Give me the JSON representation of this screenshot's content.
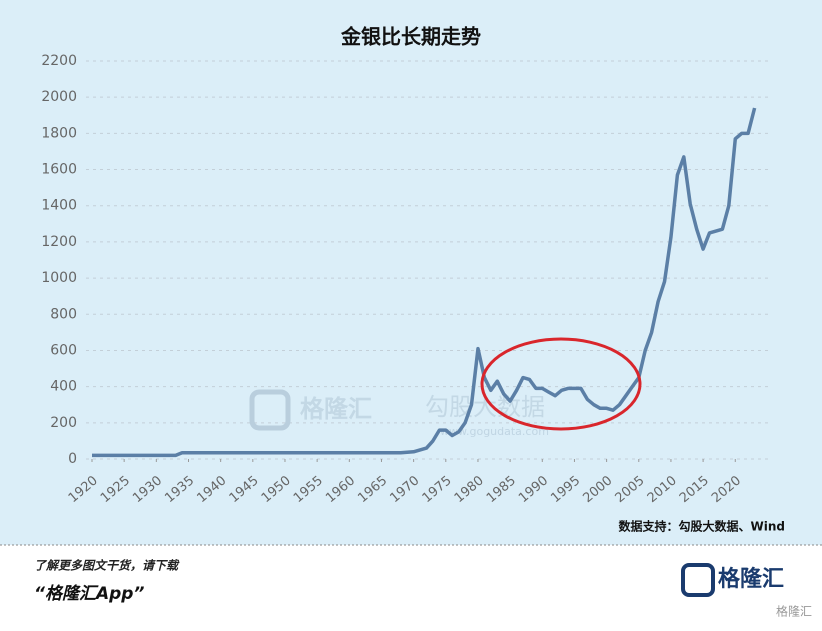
{
  "chart_data": {
    "type": "line",
    "title": "金银比长期走势",
    "x": [
      1920,
      1925,
      1930,
      1933,
      1934,
      1940,
      1950,
      1960,
      1968,
      1970,
      1972,
      1973,
      1974,
      1975,
      1976,
      1977,
      1978,
      1979,
      1980,
      1981,
      1982,
      1983,
      1984,
      1985,
      1986,
      1987,
      1988,
      1989,
      1990,
      1991,
      1992,
      1993,
      1994,
      1995,
      1996,
      1997,
      1998,
      1999,
      2000,
      2001,
      2002,
      2003,
      2004,
      2005,
      2006,
      2007,
      2008,
      2009,
      2010,
      2011,
      2012,
      2013,
      2014,
      2015,
      2016,
      2017,
      2018,
      2019,
      2020,
      2021,
      2022,
      2023
    ],
    "values": [
      20,
      20,
      20,
      20,
      35,
      35,
      35,
      35,
      35,
      40,
      60,
      100,
      160,
      160,
      130,
      150,
      200,
      300,
      610,
      450,
      380,
      430,
      360,
      320,
      380,
      450,
      440,
      390,
      390,
      370,
      350,
      380,
      390,
      390,
      390,
      330,
      300,
      280,
      280,
      270,
      300,
      350,
      400,
      450,
      600,
      700,
      870,
      980,
      1225,
      1570,
      1670,
      1410,
      1270,
      1160,
      1250,
      1260,
      1270,
      1400,
      1770,
      1800,
      1800,
      1940
    ],
    "color": "#5b7fa6",
    "xlim": [
      1920,
      2024
    ],
    "xticks": [
      1920,
      1925,
      1930,
      1935,
      1940,
      1945,
      1950,
      1955,
      1960,
      1965,
      1970,
      1975,
      1980,
      1985,
      1990,
      1995,
      2000,
      2005,
      2010,
      2015,
      2020
    ],
    "ylim": [
      0,
      2200
    ],
    "yticks": [
      0,
      200,
      400,
      600,
      800,
      1000,
      1200,
      1400,
      1600,
      1800,
      2000,
      2200
    ],
    "grid": true,
    "source": "数据支持：勾股大数据、Wind",
    "watermark": [
      "格隆汇",
      "勾股大数据",
      "www.gogudata.com"
    ]
  },
  "footer": {
    "line1": "了解更多图文干货，请下载",
    "line2": "“格隆汇App”",
    "logo": "格隆汇",
    "corner": "格隆汇"
  }
}
